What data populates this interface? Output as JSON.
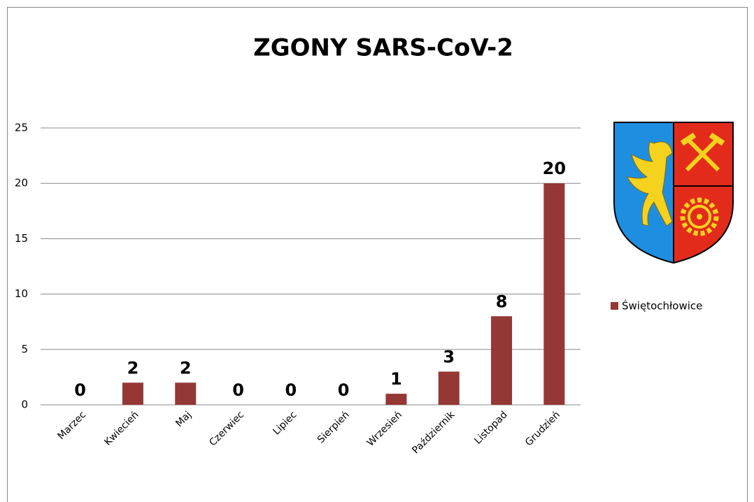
{
  "chart_data": {
    "type": "bar",
    "title": "ZGONY SARS-CoV-2",
    "categories": [
      "Marzec",
      "Kwiecień",
      "Maj",
      "Czerwiec",
      "Lipiec",
      "Sierpień",
      "Wrzesień",
      "Październik",
      "Listopad",
      "Grudzień"
    ],
    "series": [
      {
        "name": "Świętochłowice",
        "color": "#953735",
        "values": [
          0,
          2,
          2,
          0,
          0,
          0,
          1,
          3,
          8,
          20
        ]
      }
    ],
    "ylim": [
      0,
      25
    ],
    "yticks": [
      0,
      5,
      10,
      15,
      20,
      25
    ],
    "grid": true,
    "legend": "right"
  }
}
